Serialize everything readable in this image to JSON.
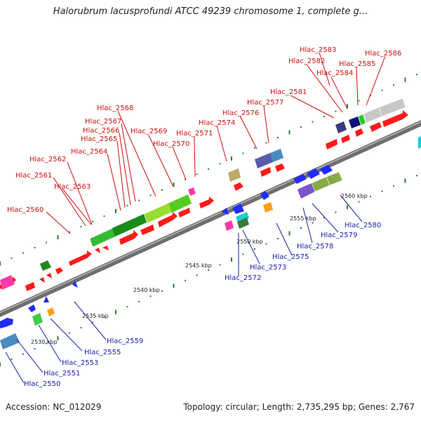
{
  "title": "Halorubrum lacusprofundi ATCC 49239 chromosome 1, complete g...",
  "footer": {
    "accession": "Accession: NC_012029",
    "summary": "Topology: circular; Length: 2,735,295 bp; Genes: 2,767"
  },
  "colors": {
    "backbone": "#777777",
    "tick": "#2f7d2f",
    "label_forward": "#cc1111",
    "label_reverse": "#1a22aa",
    "cds_forward": "#ff1a1a",
    "cds_reverse": "#1f2bff"
  },
  "scale_labels": [
    "2530 kbp",
    "2535 kbp",
    "2540 kbp",
    "2545 kbp",
    "2550 kbp",
    "2555 kbp",
    "2560 kbp"
  ],
  "forward_labels": [
    "Hlac_2560",
    "Hlac_2561",
    "Hlac_2562",
    "Hlac_2563",
    "Hlac_2564",
    "Hlac_2565",
    "Hlac_2566",
    "Hlac_2567",
    "Hlac_2568",
    "Hlac_2569",
    "Hlac_2570",
    "Hlac_2571",
    "Hlac_2574",
    "Hlac_2576",
    "Hlac_2577",
    "Hlac_2581",
    "Hlac_2582",
    "Hlac_2583",
    "Hlac_2584",
    "Hlac_2585",
    "Hlac_2586"
  ],
  "reverse_labels": [
    "Hlac_2550",
    "Hlac_2551",
    "Hlac_2553",
    "Hlac_2555",
    "Hlac_2559",
    "Hlac_2572",
    "Hlac_2573",
    "Hlac_2575",
    "Hlac_2578",
    "Hlac_2579",
    "Hlac_2580"
  ]
}
